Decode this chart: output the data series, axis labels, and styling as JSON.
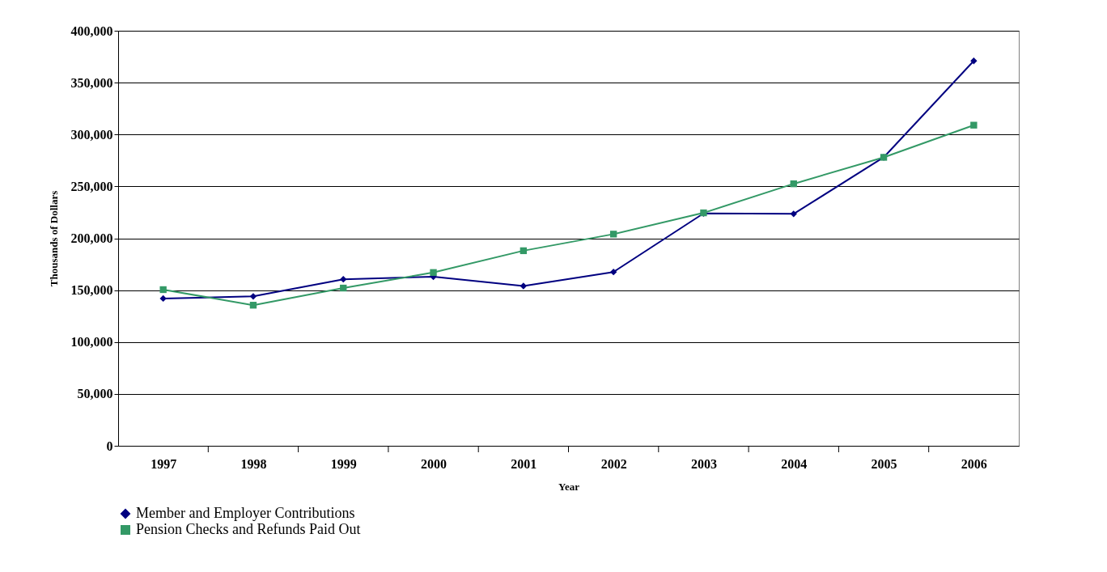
{
  "chart_data": {
    "type": "line",
    "xlabel": "Year",
    "ylabel": "Thousands of Dollars",
    "categories": [
      "1997",
      "1998",
      "1999",
      "2000",
      "2001",
      "2002",
      "2003",
      "2004",
      "2005",
      "2006"
    ],
    "series": [
      {
        "name": "Member and Employer Contributions",
        "color": "#000080",
        "marker": "diamond",
        "values": [
          142000,
          144000,
          160500,
          163000,
          154000,
          167500,
          224000,
          223500,
          278000,
          371000
        ]
      },
      {
        "name": "Pension Checks and Refunds Paid Out",
        "color": "#339966",
        "marker": "square",
        "values": [
          150500,
          135500,
          152000,
          167000,
          188000,
          204000,
          224500,
          252500,
          278000,
          309000
        ]
      }
    ],
    "ylim": [
      0,
      400000
    ],
    "yticks": [
      0,
      {
        "value": 50000,
        "label": "50,000"
      },
      {
        "value": 100000,
        "label": "100,000"
      },
      {
        "value": 150000,
        "label": "150,000"
      },
      {
        "value": 200000,
        "label": "200,000"
      },
      {
        "value": 250000,
        "label": "250,000"
      },
      {
        "value": 300000,
        "label": "300,000"
      },
      {
        "value": 350000,
        "label": "350,000"
      },
      {
        "value": 400000,
        "label": "400,000"
      }
    ],
    "grid": "y",
    "legend": "bottom",
    "line_style": "solid"
  }
}
